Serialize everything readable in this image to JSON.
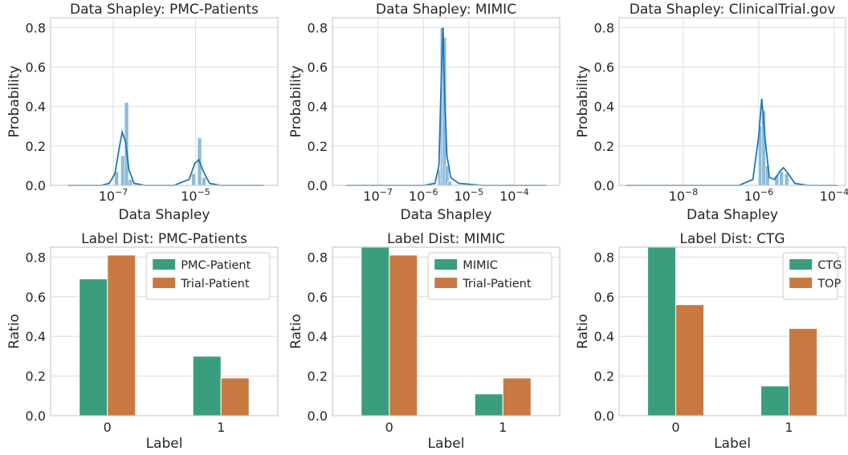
{
  "colors": {
    "hist_fill": "#8fbbdb",
    "kde_line": "#1f77b4",
    "series_a": "#3a9e7e",
    "series_b": "#c87941",
    "grid": "#dcdcdc",
    "spine": "#cccccc"
  },
  "chart_data": [
    {
      "type": "area",
      "title": "Data Shapley: PMC-Patients",
      "xlabel": "Data Shapley",
      "ylabel": "Probability",
      "x_scale": "log",
      "xlim": [
        3e-09,
        0.001
      ],
      "ylim": [
        0,
        0.85
      ],
      "yticks": [
        "0.0",
        "0.2",
        "0.4",
        "0.6",
        "0.8"
      ],
      "xticks": [
        {
          "value": 1e-07,
          "base": "10",
          "exp": "−7"
        },
        {
          "value": 1e-05,
          "base": "10",
          "exp": "−5"
        }
      ],
      "grid": true,
      "histogram": [
        {
          "x": 1.2e-07,
          "y": 0.07
        },
        {
          "x": 1.7e-07,
          "y": 0.15
        },
        {
          "x": 2.1e-07,
          "y": 0.42
        },
        {
          "x": 2.6e-07,
          "y": 0.03
        },
        {
          "x": 9e-06,
          "y": 0.06
        },
        {
          "x": 1.25e-05,
          "y": 0.24
        },
        {
          "x": 1.6e-05,
          "y": 0.04
        }
      ],
      "kde": [
        {
          "x": 8e-09,
          "y": 0.0
        },
        {
          "x": 5e-08,
          "y": 0.0
        },
        {
          "x": 8e-08,
          "y": 0.01
        },
        {
          "x": 1.1e-07,
          "y": 0.06
        },
        {
          "x": 1.4e-07,
          "y": 0.19
        },
        {
          "x": 1.65e-07,
          "y": 0.27
        },
        {
          "x": 2e-07,
          "y": 0.22
        },
        {
          "x": 2.4e-07,
          "y": 0.08
        },
        {
          "x": 3.2e-07,
          "y": 0.01
        },
        {
          "x": 6e-07,
          "y": 0.0
        },
        {
          "x": 3e-06,
          "y": 0.0
        },
        {
          "x": 7e-06,
          "y": 0.03
        },
        {
          "x": 9.5e-06,
          "y": 0.11
        },
        {
          "x": 1.2e-05,
          "y": 0.13
        },
        {
          "x": 1.55e-05,
          "y": 0.07
        },
        {
          "x": 2.2e-05,
          "y": 0.01
        },
        {
          "x": 4e-05,
          "y": 0.0
        },
        {
          "x": 0.00045,
          "y": 0.0
        }
      ]
    },
    {
      "type": "area",
      "title": "Data Shapley: MIMIC",
      "xlabel": "Data Shapley",
      "ylabel": "Probability",
      "x_scale": "log",
      "xlim": [
        1e-08,
        0.001
      ],
      "ylim": [
        0,
        0.85
      ],
      "yticks": [
        "0.0",
        "0.2",
        "0.4",
        "0.6",
        "0.8"
      ],
      "xticks": [
        {
          "value": 1e-07,
          "base": "10",
          "exp": "−7"
        },
        {
          "value": 1e-06,
          "base": "10",
          "exp": "−6"
        },
        {
          "value": 1e-05,
          "base": "10",
          "exp": "−5"
        },
        {
          "value": 0.0001,
          "base": "10",
          "exp": "−4"
        }
      ],
      "grid": true,
      "histogram": [
        {
          "x": 2.3e-06,
          "y": 0.08
        },
        {
          "x": 2.6e-06,
          "y": 0.8
        },
        {
          "x": 2.9e-06,
          "y": 0.75
        },
        {
          "x": 3.3e-06,
          "y": 0.1
        },
        {
          "x": 3.8e-06,
          "y": 0.02
        }
      ],
      "kde": [
        {
          "x": 2e-08,
          "y": 0.0
        },
        {
          "x": 1e-06,
          "y": 0.0
        },
        {
          "x": 1.8e-06,
          "y": 0.01
        },
        {
          "x": 2.2e-06,
          "y": 0.1
        },
        {
          "x": 2.45e-06,
          "y": 0.5
        },
        {
          "x": 2.7e-06,
          "y": 0.8
        },
        {
          "x": 2.95e-06,
          "y": 0.45
        },
        {
          "x": 3.3e-06,
          "y": 0.15
        },
        {
          "x": 4e-06,
          "y": 0.04
        },
        {
          "x": 6e-06,
          "y": 0.01
        },
        {
          "x": 2e-05,
          "y": 0.0
        },
        {
          "x": 0.0005,
          "y": 0.0
        }
      ]
    },
    {
      "type": "area",
      "title": "Data Shapley: ClinicalTrial.gov",
      "xlabel": "Data Shapley",
      "ylabel": "Probability",
      "x_scale": "log",
      "xlim": [
        2e-10,
        0.0002
      ],
      "ylim": [
        0,
        0.85
      ],
      "yticks": [
        "0.0",
        "0.2",
        "0.4",
        "0.6",
        "0.8"
      ],
      "xticks": [
        {
          "value": 1e-08,
          "base": "10",
          "exp": "−8"
        },
        {
          "value": 1e-06,
          "base": "10",
          "exp": "−6"
        },
        {
          "value": 0.0001,
          "base": "10",
          "exp": "−4"
        }
      ],
      "grid": true,
      "histogram": [
        {
          "x": 1.1e-06,
          "y": 0.3
        },
        {
          "x": 1.35e-06,
          "y": 0.38
        },
        {
          "x": 1.7e-06,
          "y": 0.1
        },
        {
          "x": 3e-06,
          "y": 0.05
        },
        {
          "x": 4e-06,
          "y": 0.07
        },
        {
          "x": 5.5e-06,
          "y": 0.06
        }
      ],
      "kde": [
        {
          "x": 3e-10,
          "y": 0.0
        },
        {
          "x": 3e-07,
          "y": 0.0
        },
        {
          "x": 7e-07,
          "y": 0.03
        },
        {
          "x": 1e-06,
          "y": 0.25
        },
        {
          "x": 1.2e-06,
          "y": 0.44
        },
        {
          "x": 1.45e-06,
          "y": 0.25
        },
        {
          "x": 1.9e-06,
          "y": 0.04
        },
        {
          "x": 2.6e-06,
          "y": 0.03
        },
        {
          "x": 3.6e-06,
          "y": 0.07
        },
        {
          "x": 4.5e-06,
          "y": 0.09
        },
        {
          "x": 6e-06,
          "y": 0.06
        },
        {
          "x": 9e-06,
          "y": 0.01
        },
        {
          "x": 2e-05,
          "y": 0.0
        },
        {
          "x": 0.00012,
          "y": 0.0
        }
      ]
    },
    {
      "type": "bar",
      "title": "Label Dist: PMC-Patients",
      "xlabel": "Label",
      "ylabel": "Ratio",
      "categories": [
        "0",
        "1"
      ],
      "ylim": [
        0,
        0.85
      ],
      "yticks": [
        "0.0",
        "0.2",
        "0.4",
        "0.6",
        "0.8"
      ],
      "grid": true,
      "legend": "top-right",
      "series": [
        {
          "name": "PMC-Patient",
          "values": [
            0.69,
            0.3
          ]
        },
        {
          "name": "Trial-Patient",
          "values": [
            0.81,
            0.19
          ]
        }
      ]
    },
    {
      "type": "bar",
      "title": "Label Dist: MIMIC",
      "xlabel": "Label",
      "ylabel": "Ratio",
      "categories": [
        "0",
        "1"
      ],
      "ylim": [
        0,
        0.85
      ],
      "yticks": [
        "0.0",
        "0.2",
        "0.4",
        "0.6",
        "0.8"
      ],
      "grid": true,
      "legend": "top-right",
      "series": [
        {
          "name": "MIMIC",
          "values": [
            0.89,
            0.11
          ]
        },
        {
          "name": "Trial-Patient",
          "values": [
            0.81,
            0.19
          ]
        }
      ]
    },
    {
      "type": "bar",
      "title": "Label Dist: CTG",
      "xlabel": "Label",
      "ylabel": "Ratio",
      "categories": [
        "0",
        "1"
      ],
      "ylim": [
        0,
        0.85
      ],
      "yticks": [
        "0.0",
        "0.2",
        "0.4",
        "0.6",
        "0.8"
      ],
      "grid": true,
      "legend": "top-right",
      "series": [
        {
          "name": "CTG",
          "values": [
            0.85,
            0.15
          ]
        },
        {
          "name": "TOP",
          "values": [
            0.56,
            0.44
          ]
        }
      ]
    }
  ]
}
